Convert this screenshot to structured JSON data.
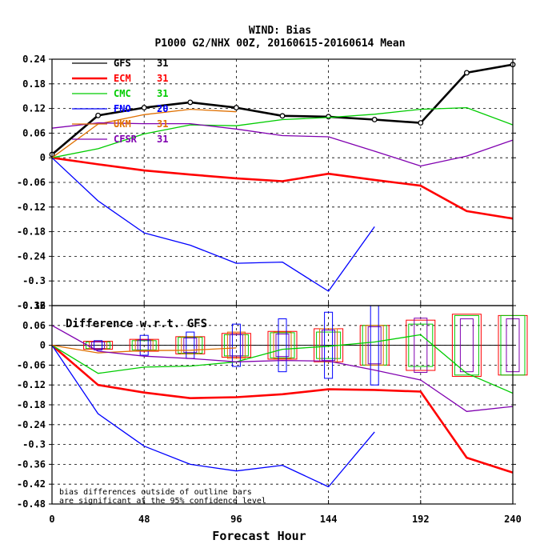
{
  "title_line1": "WIND: Bias",
  "title_line2": "P1000 G2/NHX 00Z, 20160615-20160614 Mean",
  "xlabel": "Forecast Hour",
  "chart_data": [
    {
      "type": "line",
      "title": "",
      "xlabel": "Forecast Hour",
      "ylabel": "",
      "xlim": [
        0,
        240
      ],
      "ylim": [
        -0.36,
        0.24
      ],
      "x_ticks": [
        "0",
        "48",
        "96",
        "144",
        "192",
        "240"
      ],
      "y_ticks": [
        "0.24",
        "0.18",
        "0.12",
        "0.06",
        "0",
        "-0.06",
        "-0.12",
        "-0.18",
        "-0.24",
        "-0.3",
        "-0.36"
      ],
      "grid": true,
      "legend_position": "top-left",
      "series": [
        {
          "name": "GFS",
          "count": "31",
          "color": "#000000",
          "markers": true,
          "x": [
            0,
            24,
            48,
            72,
            96,
            120,
            144,
            168,
            192,
            216,
            240
          ],
          "values": [
            0.008,
            0.103,
            0.122,
            0.135,
            0.122,
            0.102,
            0.1,
            0.093,
            0.085,
            0.207,
            0.227
          ]
        },
        {
          "name": "ECM",
          "count": "31",
          "color": "#ff0000",
          "x": [
            0,
            24,
            48,
            72,
            96,
            120,
            144,
            168,
            192,
            216,
            240
          ],
          "values": [
            0.0,
            -0.016,
            -0.031,
            -0.041,
            -0.05,
            -0.057,
            -0.039,
            -0.054,
            -0.068,
            -0.13,
            -0.148
          ]
        },
        {
          "name": "CMC",
          "count": "31",
          "color": "#00cc00",
          "x": [
            0,
            24,
            48,
            72,
            96,
            120,
            144,
            168,
            192,
            216,
            240
          ],
          "values": [
            0.0,
            0.022,
            0.058,
            0.08,
            0.078,
            0.093,
            0.098,
            0.106,
            0.118,
            0.122,
            0.08
          ]
        },
        {
          "name": "FNO",
          "count": "20",
          "color": "#0000ff",
          "x": [
            0,
            24,
            48,
            72,
            96,
            120,
            144,
            168
          ],
          "values": [
            0.0,
            -0.105,
            -0.183,
            -0.213,
            -0.257,
            -0.254,
            -0.325,
            -0.168
          ]
        },
        {
          "name": "UKM",
          "count": "31",
          "color": "#e07000",
          "x": [
            0,
            24,
            48,
            72,
            96
          ],
          "values": [
            0.0,
            0.082,
            0.105,
            0.118,
            0.112
          ]
        },
        {
          "name": "CFSR",
          "count": "31",
          "color": "#8000b0",
          "x": [
            0,
            24,
            48,
            72,
            96,
            120,
            144,
            168,
            192,
            216,
            240
          ],
          "values": [
            0.072,
            0.085,
            0.083,
            0.083,
            0.07,
            0.054,
            0.051,
            0.016,
            -0.02,
            0.004,
            0.043
          ]
        }
      ]
    },
    {
      "type": "line",
      "title": "Difference w.r.t. GFS",
      "xlabel": "Forecast Hour",
      "ylabel": "",
      "xlim": [
        0,
        240
      ],
      "ylim": [
        -0.48,
        0.12
      ],
      "x_ticks": [
        "0",
        "48",
        "96",
        "144",
        "192",
        "240"
      ],
      "y_ticks": [
        "0.12",
        "0.06",
        "0",
        "-0.06",
        "-0.12",
        "-0.18",
        "-0.24",
        "-0.3",
        "-0.36",
        "-0.42",
        "-0.48"
      ],
      "grid": true,
      "note_line1": "bias differences outside of outline bars",
      "note_line2": "are significant at the 95% confidence level",
      "series": [
        {
          "name": "ECM",
          "color": "#ff0000",
          "x": [
            0,
            24,
            48,
            72,
            96,
            120,
            144,
            168,
            192,
            216,
            240
          ],
          "values": [
            0.0,
            -0.12,
            -0.143,
            -0.16,
            -0.157,
            -0.148,
            -0.133,
            -0.135,
            -0.14,
            -0.34,
            -0.385
          ]
        },
        {
          "name": "CMC",
          "color": "#00cc00",
          "x": [
            0,
            24,
            48,
            72,
            96,
            120,
            144,
            168,
            192,
            216,
            240
          ],
          "values": [
            0.0,
            -0.085,
            -0.066,
            -0.063,
            -0.05,
            -0.012,
            -0.003,
            0.01,
            0.032,
            -0.085,
            -0.145
          ]
        },
        {
          "name": "FNO",
          "color": "#0000ff",
          "x": [
            0,
            24,
            48,
            72,
            96,
            120,
            144,
            168
          ],
          "values": [
            0.0,
            -0.207,
            -0.305,
            -0.36,
            -0.38,
            -0.363,
            -0.428,
            -0.262
          ]
        },
        {
          "name": "UKM",
          "color": "#e07000",
          "x": [
            0,
            24,
            48,
            72,
            96
          ],
          "values": [
            0.0,
            -0.023,
            -0.016,
            -0.015,
            -0.008
          ]
        },
        {
          "name": "CFSR",
          "color": "#8000b0",
          "x": [
            0,
            24,
            48,
            72,
            96,
            120,
            144,
            168,
            192,
            216,
            240
          ],
          "values": [
            0.06,
            -0.018,
            -0.033,
            -0.04,
            -0.05,
            -0.046,
            -0.048,
            -0.075,
            -0.105,
            -0.2,
            -0.185
          ]
        }
      ],
      "conf_bars": [
        {
          "x": 24,
          "half_widths": {
            "ECM": 0.012,
            "CMC": 0.01,
            "UKM": 0.01,
            "CFSR": 0.01,
            "FNO": 0.014
          }
        },
        {
          "x": 48,
          "half_widths": {
            "ECM": 0.018,
            "CMC": 0.014,
            "UKM": 0.016,
            "CFSR": 0.016,
            "FNO": 0.03
          }
        },
        {
          "x": 72,
          "half_widths": {
            "ECM": 0.026,
            "CMC": 0.024,
            "UKM": 0.026,
            "CFSR": 0.022,
            "FNO": 0.04
          }
        },
        {
          "x": 96,
          "half_widths": {
            "ECM": 0.036,
            "CMC": 0.032,
            "UKM": 0.04,
            "CFSR": 0.032,
            "FNO": 0.064
          }
        },
        {
          "x": 120,
          "half_widths": {
            "ECM": 0.042,
            "CMC": 0.038,
            "UKM": 0.04,
            "CFSR": 0.034,
            "FNO": 0.08
          }
        },
        {
          "x": 144,
          "half_widths": {
            "ECM": 0.05,
            "CMC": 0.04,
            "UKM": 0.05,
            "CFSR": 0.046,
            "FNO": 0.1
          }
        },
        {
          "x": 168,
          "half_widths": {
            "ECM": 0.06,
            "CMC": 0.06,
            "UKM": 0.06,
            "CFSR": 0.056,
            "FNO": 0.12
          }
        },
        {
          "x": 192,
          "half_widths": {
            "ECM": 0.076,
            "CMC": 0.064,
            "CFSR": 0.082
          }
        },
        {
          "x": 216,
          "half_widths": {
            "ECM": 0.094,
            "CMC": 0.09,
            "CFSR": 0.08
          }
        },
        {
          "x": 240,
          "half_widths": {
            "ECM": 0.09,
            "CMC": 0.09,
            "CFSR": 0.08
          }
        }
      ]
    }
  ]
}
